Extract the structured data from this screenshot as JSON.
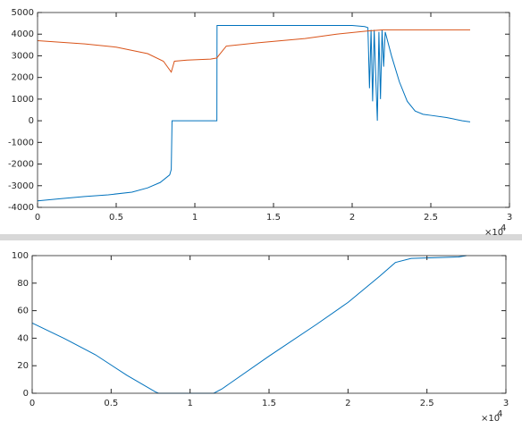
{
  "chart_data": [
    {
      "type": "line",
      "x_scale_label": "×10",
      "x_scale_exponent": "4",
      "xlim": [
        0,
        3
      ],
      "xticks": [
        0,
        0.5,
        1,
        1.5,
        2,
        2.5,
        3
      ],
      "ylim": [
        -4000,
        5000
      ],
      "yticks": [
        -4000,
        -3000,
        -2000,
        -1000,
        0,
        1000,
        2000,
        3000,
        4000,
        5000
      ],
      "grid": false,
      "series": [
        {
          "color": "#0072BD",
          "x": [
            0,
            0.15,
            0.3,
            0.45,
            0.6,
            0.7,
            0.78,
            0.84,
            0.85,
            0.855,
            1.14,
            1.141,
            1.6,
            2.0,
            2.08,
            2.1,
            2.11,
            2.12,
            2.13,
            2.14,
            2.15,
            2.16,
            2.17,
            2.18,
            2.19,
            2.2,
            2.21,
            2.25,
            2.3,
            2.35,
            2.4,
            2.45,
            2.5,
            2.6,
            2.7,
            2.75
          ],
          "values": [
            -3700,
            -3600,
            -3500,
            -3420,
            -3300,
            -3100,
            -2850,
            -2500,
            -2250,
            0,
            0,
            4400,
            4400,
            4400,
            4350,
            4300,
            1500,
            4200,
            900,
            4200,
            2000,
            0,
            4100,
            1000,
            4200,
            2500,
            4100,
            3000,
            1800,
            900,
            450,
            300,
            250,
            150,
            0,
            -50
          ]
        },
        {
          "color": "#D95319",
          "x": [
            0,
            0.3,
            0.5,
            0.7,
            0.8,
            0.85,
            0.87,
            0.95,
            1.1,
            1.14,
            1.15,
            1.2,
            1.4,
            1.7,
            1.9,
            2.1,
            2.2,
            2.75
          ],
          "values": [
            3700,
            3550,
            3400,
            3100,
            2750,
            2250,
            2750,
            2800,
            2850,
            2900,
            3000,
            3450,
            3600,
            3800,
            4000,
            4150,
            4200,
            4200
          ]
        }
      ]
    },
    {
      "type": "line",
      "x_scale_label": "×10",
      "x_scale_exponent": "4",
      "xlim": [
        0,
        3
      ],
      "xticks": [
        0,
        0.5,
        1,
        1.5,
        2,
        2.5,
        3
      ],
      "ylim": [
        0,
        100
      ],
      "yticks": [
        0,
        20,
        40,
        60,
        80,
        100
      ],
      "grid": false,
      "series": [
        {
          "color": "#0072BD",
          "x": [
            0,
            0.2,
            0.4,
            0.6,
            0.78,
            0.8,
            1.15,
            1.2,
            1.5,
            1.8,
            2.0,
            2.2,
            2.3,
            2.4,
            2.7,
            2.75
          ],
          "values": [
            51,
            40,
            28,
            13,
            1,
            0,
            0,
            3,
            27,
            50,
            66,
            85,
            95,
            98,
            99,
            100
          ]
        }
      ]
    }
  ]
}
